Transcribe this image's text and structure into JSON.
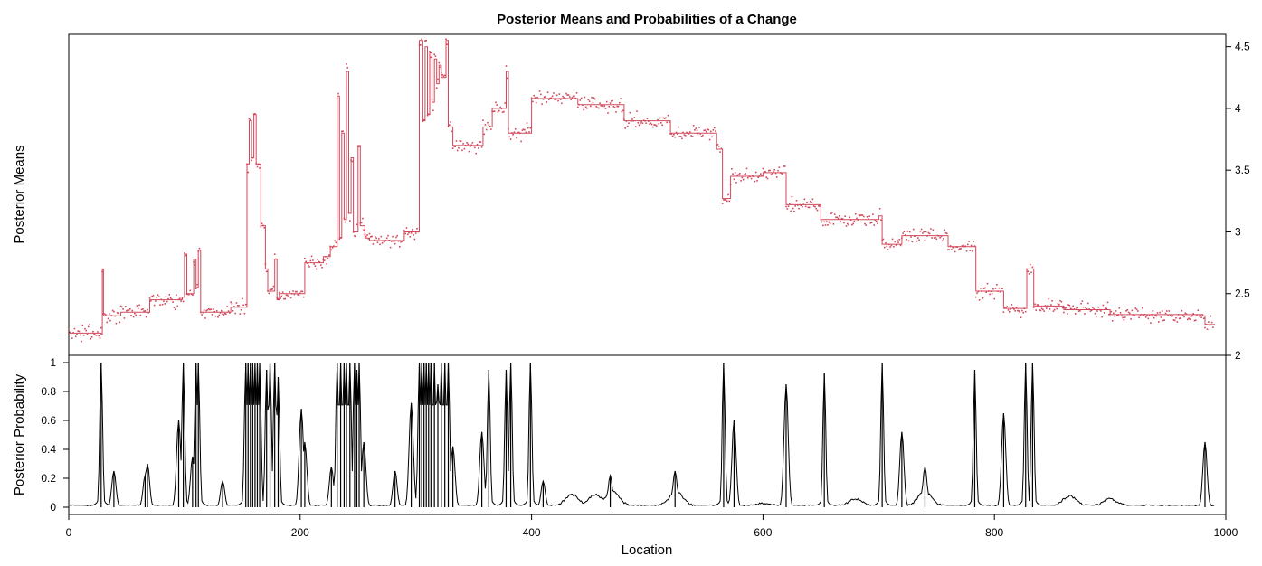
{
  "chart_data": {
    "type": "line",
    "title": "Posterior Means and Probabilities of a Change",
    "xlabel": "Location",
    "xlim": [
      0,
      1000
    ],
    "x_ticks": [
      0,
      200,
      400,
      600,
      800,
      1000
    ],
    "colors": {
      "means": "#d1495b",
      "prob": "#000000",
      "frame": "#000000"
    },
    "top_panel": {
      "ylabel": "Posterior Means",
      "ylim": [
        2.0,
        4.6
      ],
      "y_ticks": [
        "2",
        "2.5",
        "3",
        "3.5",
        "4",
        "4.5"
      ],
      "y_axis_side": "right",
      "series": [
        {
          "type": "step",
          "knots": [
            [
              0,
              2.18
            ],
            [
              28,
              2.17
            ],
            [
              29,
              2.7
            ],
            [
              30,
              2.32
            ],
            [
              45,
              2.35
            ],
            [
              70,
              2.45
            ],
            [
              98,
              2.47
            ],
            [
              100,
              2.82
            ],
            [
              102,
              2.5
            ],
            [
              108,
              2.78
            ],
            [
              110,
              2.55
            ],
            [
              112,
              2.85
            ],
            [
              114,
              2.35
            ],
            [
              140,
              2.39
            ],
            [
              152,
              2.39
            ],
            [
              154,
              3.55
            ],
            [
              156,
              3.9
            ],
            [
              158,
              3.6
            ],
            [
              160,
              3.95
            ],
            [
              162,
              3.55
            ],
            [
              166,
              3.05
            ],
            [
              170,
              2.7
            ],
            [
              172,
              2.52
            ],
            [
              178,
              2.78
            ],
            [
              180,
              2.45
            ],
            [
              182,
              2.5
            ],
            [
              200,
              2.5
            ],
            [
              204,
              2.75
            ],
            [
              220,
              2.8
            ],
            [
              226,
              2.88
            ],
            [
              232,
              4.1
            ],
            [
              234,
              2.95
            ],
            [
              236,
              3.8
            ],
            [
              238,
              3.1
            ],
            [
              240,
              4.3
            ],
            [
              242,
              3.15
            ],
            [
              244,
              3.6
            ],
            [
              246,
              3.0
            ],
            [
              250,
              3.7
            ],
            [
              252,
              3.05
            ],
            [
              256,
              2.95
            ],
            [
              260,
              2.93
            ],
            [
              280,
              2.93
            ],
            [
              290,
              3.0
            ],
            [
              298,
              3.0
            ],
            [
              303,
              4.55
            ],
            [
              306,
              3.9
            ],
            [
              308,
              4.5
            ],
            [
              310,
              3.95
            ],
            [
              312,
              4.45
            ],
            [
              314,
              4.05
            ],
            [
              316,
              4.4
            ],
            [
              318,
              4.2
            ],
            [
              320,
              4.35
            ],
            [
              322,
              4.25
            ],
            [
              326,
              4.55
            ],
            [
              328,
              3.85
            ],
            [
              332,
              3.7
            ],
            [
              350,
              3.7
            ],
            [
              358,
              3.85
            ],
            [
              366,
              4.0
            ],
            [
              374,
              4.0
            ],
            [
              378,
              4.3
            ],
            [
              380,
              3.8
            ],
            [
              398,
              3.8
            ],
            [
              400,
              4.08
            ],
            [
              410,
              4.08
            ],
            [
              440,
              4.03
            ],
            [
              480,
              3.9
            ],
            [
              520,
              3.8
            ],
            [
              560,
              3.67
            ],
            [
              565,
              3.27
            ],
            [
              572,
              3.45
            ],
            [
              600,
              3.48
            ],
            [
              616,
              3.48
            ],
            [
              620,
              3.22
            ],
            [
              640,
              3.22
            ],
            [
              650,
              3.1
            ],
            [
              700,
              3.13
            ],
            [
              703,
              2.9
            ],
            [
              720,
              2.97
            ],
            [
              760,
              2.88
            ],
            [
              782,
              2.88
            ],
            [
              784,
              2.52
            ],
            [
              806,
              2.52
            ],
            [
              808,
              2.38
            ],
            [
              826,
              2.38
            ],
            [
              828,
              2.7
            ],
            [
              834,
              2.4
            ],
            [
              860,
              2.37
            ],
            [
              900,
              2.33
            ],
            [
              960,
              2.33
            ],
            [
              980,
              2.32
            ],
            [
              982,
              2.25
            ],
            [
              990,
              2.25
            ]
          ]
        }
      ]
    },
    "bottom_panel": {
      "ylabel": "Posterior Probability",
      "ylim": [
        -0.05,
        1.05
      ],
      "y_ticks": [
        "0",
        "0.2",
        "0.4",
        "0.6",
        "0.8",
        "1"
      ],
      "y_axis_side": "left",
      "spikes": [
        [
          28,
          1.0
        ],
        [
          39,
          0.25
        ],
        [
          66,
          0.22
        ],
        [
          68,
          0.3
        ],
        [
          95,
          0.6
        ],
        [
          99,
          1.0
        ],
        [
          107,
          0.35
        ],
        [
          110,
          1.0
        ],
        [
          112,
          1.0
        ],
        [
          133,
          0.18
        ],
        [
          153,
          1.0
        ],
        [
          155,
          1.0
        ],
        [
          157,
          1.0
        ],
        [
          159,
          1.0
        ],
        [
          161,
          1.0
        ],
        [
          163,
          1.0
        ],
        [
          165,
          1.0
        ],
        [
          171,
          0.95
        ],
        [
          174,
          1.0
        ],
        [
          178,
          1.0
        ],
        [
          181,
          0.9
        ],
        [
          201,
          0.68
        ],
        [
          204,
          0.45
        ],
        [
          227,
          0.28
        ],
        [
          232,
          1.0
        ],
        [
          235,
          1.0
        ],
        [
          238,
          1.0
        ],
        [
          240,
          1.0
        ],
        [
          243,
          1.0
        ],
        [
          247,
          1.0
        ],
        [
          249,
          0.95
        ],
        [
          251,
          1.0
        ],
        [
          255,
          0.45
        ],
        [
          282,
          0.25
        ],
        [
          296,
          0.72
        ],
        [
          303,
          1.0
        ],
        [
          305,
          1.0
        ],
        [
          307,
          1.0
        ],
        [
          309,
          1.0
        ],
        [
          311,
          1.0
        ],
        [
          313,
          1.0
        ],
        [
          316,
          1.0
        ],
        [
          319,
          0.85
        ],
        [
          322,
          1.0
        ],
        [
          325,
          1.0
        ],
        [
          328,
          1.0
        ],
        [
          332,
          0.42
        ],
        [
          357,
          0.52
        ],
        [
          363,
          0.95
        ],
        [
          378,
          0.95
        ],
        [
          382,
          1.0
        ],
        [
          399,
          1.0
        ],
        [
          410,
          0.18
        ],
        [
          468,
          0.22
        ],
        [
          524,
          0.25
        ],
        [
          566,
          1.0
        ],
        [
          575,
          0.6
        ],
        [
          620,
          0.85
        ],
        [
          653,
          0.93
        ],
        [
          703,
          1.0
        ],
        [
          720,
          0.52
        ],
        [
          740,
          0.28
        ],
        [
          783,
          0.95
        ],
        [
          808,
          0.65
        ],
        [
          827,
          1.0
        ],
        [
          833,
          1.0
        ],
        [
          982,
          0.45
        ]
      ]
    }
  }
}
